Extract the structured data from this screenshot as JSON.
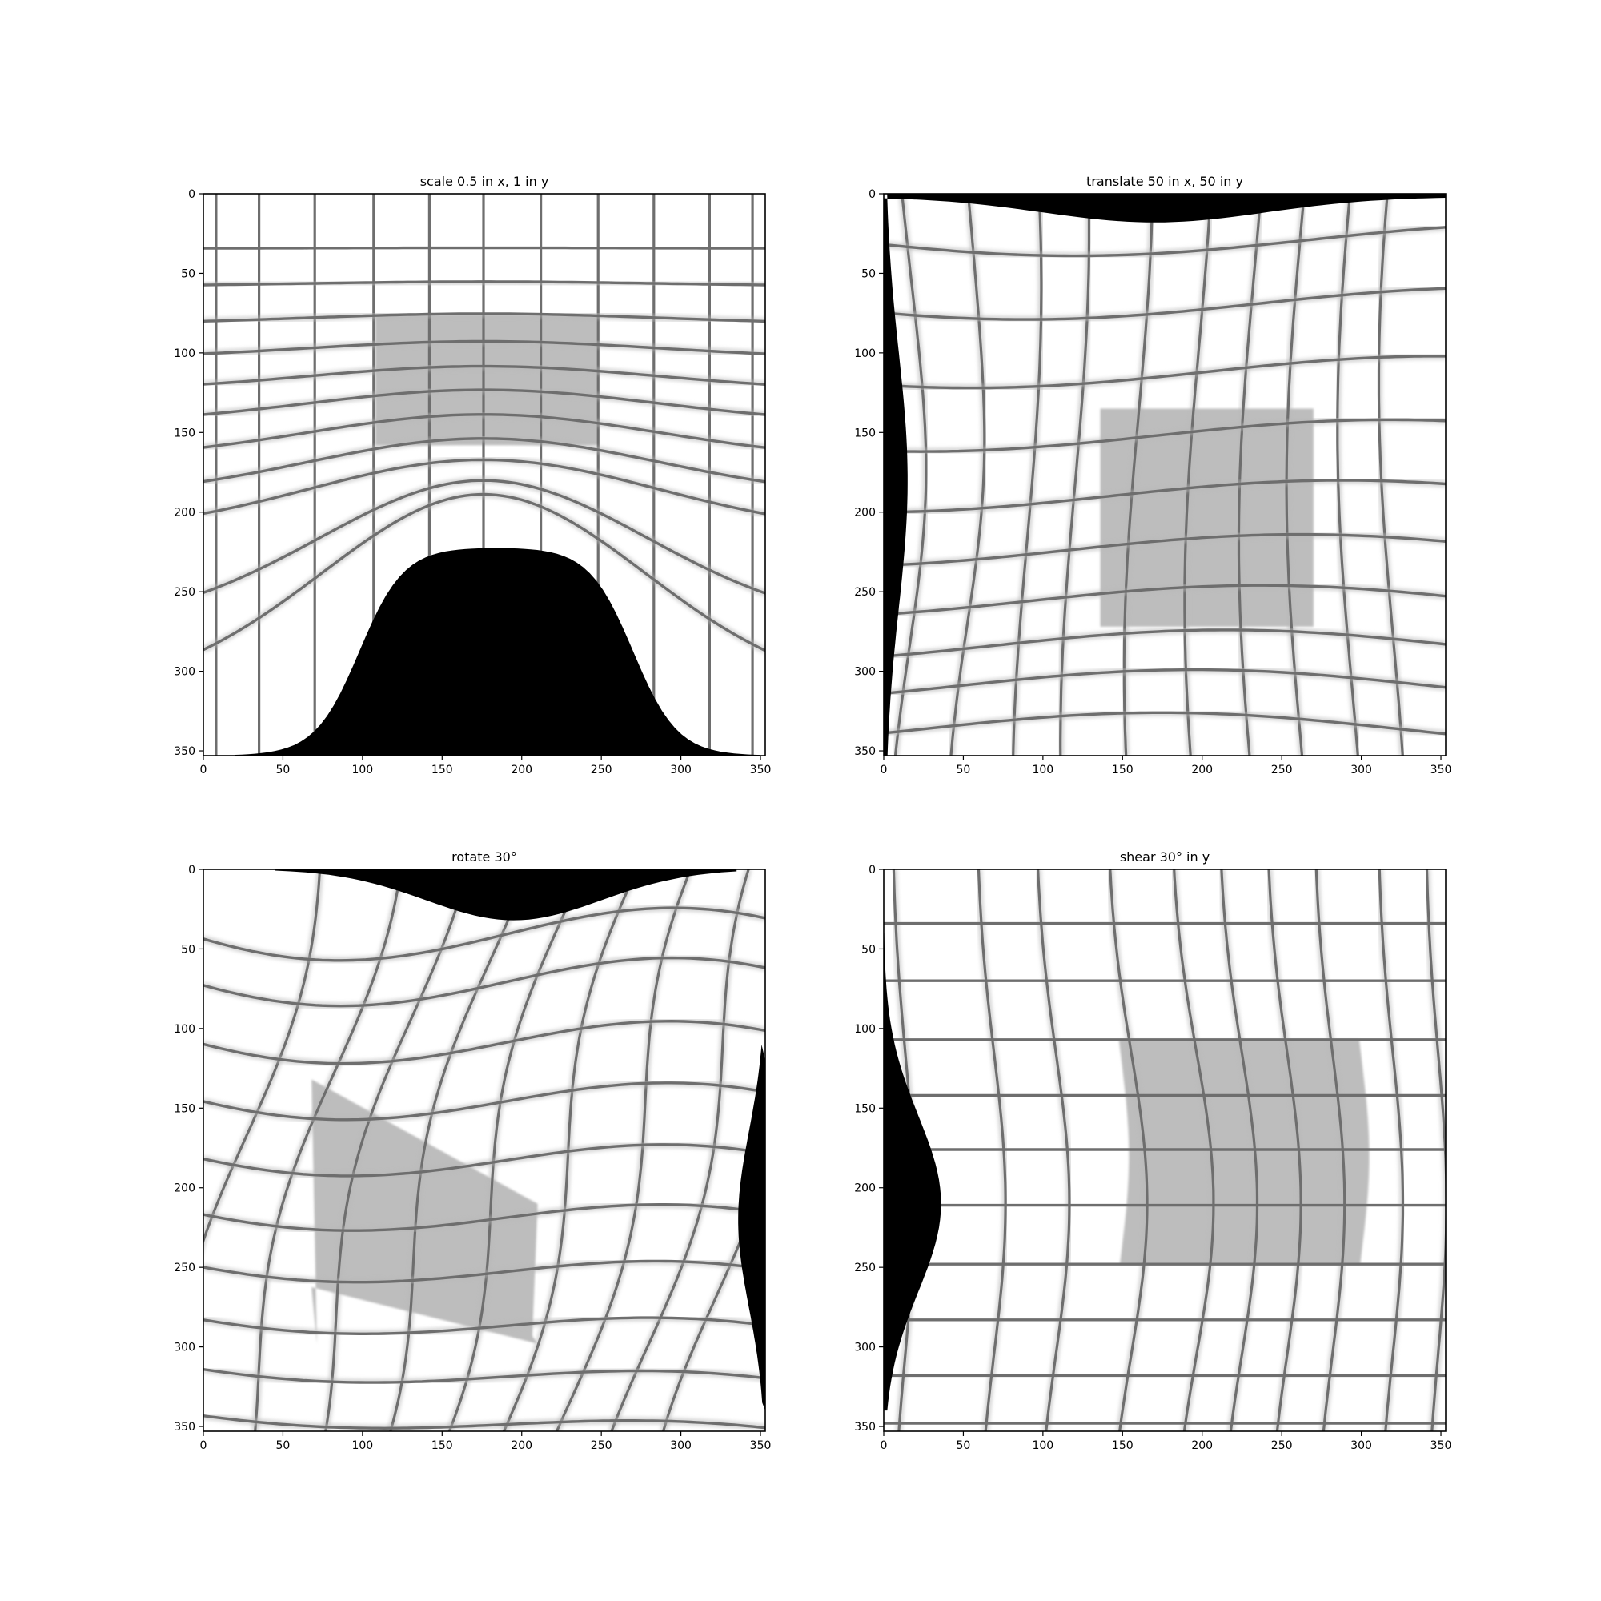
{
  "figure": {
    "panels": [
      {
        "title": "scale 0.5 in x, 1 in y"
      },
      {
        "title": "translate 50 in x, 50 in y"
      },
      {
        "title": "rotate 30°"
      },
      {
        "title": "shear 30° in y"
      }
    ]
  },
  "chart_data": [
    {
      "type": "heatmap",
      "title": "scale 0.5 in x, 1 in y",
      "xlim": [
        0,
        353
      ],
      "ylim": [
        353,
        0
      ],
      "xticks": [
        0,
        50,
        100,
        150,
        200,
        250,
        300,
        350
      ],
      "yticks": [
        0,
        50,
        100,
        150,
        200,
        250,
        300,
        350
      ],
      "colormap": "gray",
      "grid_vertical_x": [
        35,
        70,
        107,
        142,
        176,
        212,
        248,
        283,
        318
      ],
      "grid_horizontal_y": [
        34,
        56,
        78,
        98,
        117,
        136,
        157,
        179,
        200,
        222,
        240
      ],
      "shaded_region": {
        "x": [
          108,
          248
        ],
        "y": [
          76,
          158
        ],
        "shade": "#bdbdbd"
      },
      "black_region": {
        "description": "bulge bottom center",
        "x": [
          20,
          350
        ],
        "y_top_min": 222
      }
    },
    {
      "type": "heatmap",
      "title": "translate 50 in x, 50 in y",
      "xlim": [
        0,
        353
      ],
      "ylim": [
        353,
        0
      ],
      "xticks": [
        0,
        50,
        100,
        150,
        200,
        250,
        300,
        350
      ],
      "yticks": [
        0,
        50,
        100,
        150,
        200,
        250,
        300,
        350
      ],
      "colormap": "gray",
      "shaded_region": {
        "x": [
          136,
          270
        ],
        "y": [
          135,
          272
        ],
        "shade": "#bdbdbd"
      }
    },
    {
      "type": "heatmap",
      "title": "rotate 30°",
      "xlim": [
        0,
        353
      ],
      "ylim": [
        353,
        0
      ],
      "xticks": [
        0,
        50,
        100,
        150,
        200,
        250,
        300,
        350
      ],
      "yticks": [
        0,
        50,
        100,
        150,
        200,
        250,
        300,
        350
      ],
      "colormap": "gray",
      "shaded_region": {
        "x": [
          68,
          210
        ],
        "y": [
          132,
          298
        ],
        "shade": "#bdbdbd"
      }
    },
    {
      "type": "heatmap",
      "title": "shear 30° in y",
      "xlim": [
        0,
        353
      ],
      "ylim": [
        353,
        0
      ],
      "xticks": [
        0,
        50,
        100,
        150,
        200,
        250,
        300,
        350
      ],
      "yticks": [
        0,
        50,
        100,
        150,
        200,
        250,
        300,
        350
      ],
      "colormap": "gray",
      "shaded_region": {
        "x": [
          142,
          293
        ],
        "y": [
          107,
          248
        ],
        "shade": "#bdbdbd"
      }
    }
  ]
}
